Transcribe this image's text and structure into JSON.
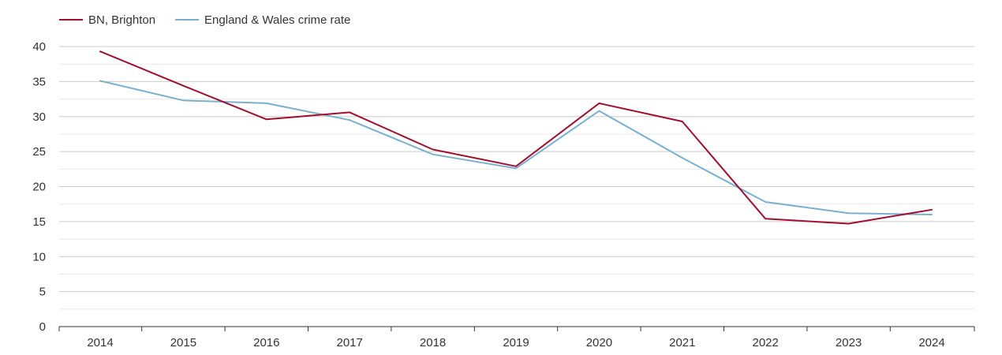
{
  "chart_data": {
    "type": "line",
    "categories": [
      "2014",
      "2015",
      "2016",
      "2017",
      "2018",
      "2019",
      "2020",
      "2021",
      "2022",
      "2023",
      "2024"
    ],
    "series": [
      {
        "name": "BN, Brighton",
        "color": "#a0102e",
        "values": [
          39.3,
          34.4,
          29.6,
          30.6,
          25.3,
          22.9,
          31.9,
          29.3,
          15.4,
          14.7,
          16.7
        ]
      },
      {
        "name": "England & Wales crime rate",
        "color": "#7ab0cf",
        "values": [
          35.1,
          32.3,
          31.9,
          29.5,
          24.6,
          22.6,
          30.8,
          24.1,
          17.8,
          16.2,
          16.0
        ]
      }
    ],
    "ylim": [
      0,
      40
    ],
    "yticks": [
      "0",
      "5",
      "10",
      "15",
      "20",
      "25",
      "30",
      "35",
      "40"
    ],
    "grid": true,
    "legend_position": "top-left",
    "title": "",
    "xlabel": "",
    "ylabel": ""
  }
}
